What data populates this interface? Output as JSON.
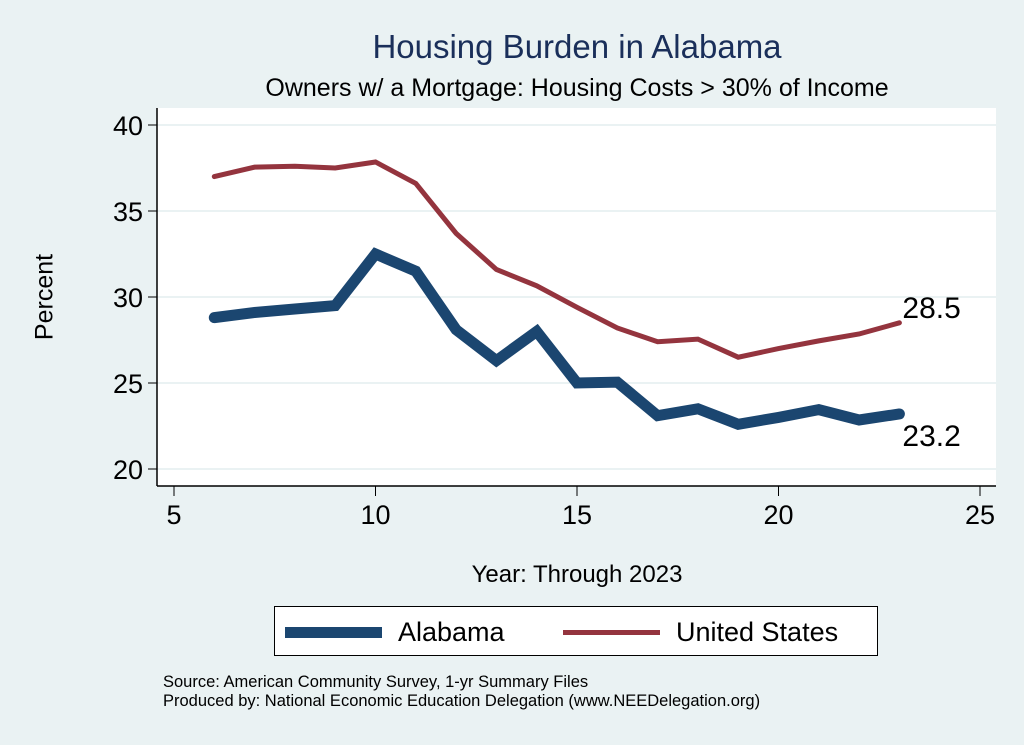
{
  "chart_data": {
    "type": "line",
    "title": "Housing Burden in Alabama",
    "subtitle": "Owners w/ a Mortgage: Housing Costs > 30% of Income",
    "xlabel": "Year: Through 2023",
    "ylabel": "Percent",
    "xlim": [
      5,
      25
    ],
    "ylim": [
      19,
      41
    ],
    "xticks": [
      5,
      10,
      15,
      20,
      25
    ],
    "yticks": [
      20,
      25,
      30,
      35,
      40
    ],
    "grid": true,
    "legend_placement": "bottom",
    "x": [
      6,
      7,
      8,
      9,
      10,
      11,
      12,
      13,
      14,
      15,
      16,
      17,
      18,
      19,
      20,
      21,
      22,
      23
    ],
    "series": [
      {
        "name": "Alabama",
        "color": "#1b4670",
        "values": [
          28.8,
          29.1,
          29.3,
          29.5,
          32.5,
          31.5,
          28.1,
          26.3,
          28.0,
          25.0,
          25.05,
          23.1,
          23.5,
          22.6,
          23.0,
          23.45,
          22.85,
          23.2
        ],
        "end_label": "23.2"
      },
      {
        "name": "United States",
        "color": "#94343e",
        "values": [
          37.0,
          37.55,
          37.6,
          37.5,
          37.85,
          36.6,
          33.7,
          31.6,
          30.65,
          29.4,
          28.2,
          27.4,
          27.55,
          26.5,
          27.0,
          27.45,
          27.85,
          28.5
        ],
        "end_label": "28.5"
      }
    ]
  },
  "footer": {
    "source": "Source: American Community Survey, 1-yr Summary Files",
    "produced_by": "Produced by: National Economic Education Delegation (www.NEEDelegation.org)"
  },
  "colors": {
    "background": "#eaf2f3",
    "plot_background": "#ffffff",
    "gridline": "#eaf2f3",
    "title": "#1a2f5a"
  }
}
